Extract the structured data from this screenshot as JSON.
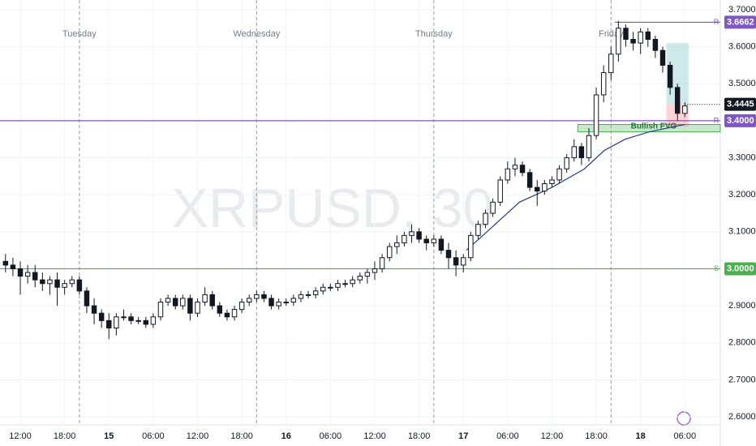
{
  "chart_data": {
    "type": "candlestick",
    "watermark": "XRPUSD, 30",
    "xlim": [
      9.25,
      106.8
    ],
    "xticks": [
      {
        "value": 12,
        "label": "12:00"
      },
      {
        "value": 18,
        "label": "18:00"
      },
      {
        "value": 24,
        "label": "15"
      },
      {
        "value": 30,
        "label": "06:00"
      },
      {
        "value": 36,
        "label": "12:00"
      },
      {
        "value": 42,
        "label": "18:00"
      },
      {
        "value": 48,
        "label": "16"
      },
      {
        "value": 54,
        "label": "06:00"
      },
      {
        "value": 60,
        "label": "12:00"
      },
      {
        "value": 66,
        "label": "18:00"
      },
      {
        "value": 72,
        "label": "17"
      },
      {
        "value": 78,
        "label": "06:00"
      },
      {
        "value": 84,
        "label": "12:00"
      },
      {
        "value": 90,
        "label": "18:00"
      },
      {
        "value": 96,
        "label": "18"
      },
      {
        "value": 102,
        "label": "06:00"
      }
    ],
    "day_markers": [
      {
        "value": 20,
        "label": "Tuesday"
      },
      {
        "value": 44,
        "label": "Wednesday"
      },
      {
        "value": 68,
        "label": "Thursday"
      },
      {
        "value": 92,
        "label": "Friday"
      }
    ],
    "ylim": [
      2.6,
      3.7
    ],
    "yticks": [
      {
        "value": 2.6,
        "label": "2.6000"
      },
      {
        "value": 2.7,
        "label": "2.7000"
      },
      {
        "value": 2.8,
        "label": "2.8000"
      },
      {
        "value": 2.9,
        "label": "2.9000"
      },
      {
        "value": 3.0,
        "label": "3.0000"
      },
      {
        "value": 3.1,
        "label": "3.1000"
      },
      {
        "value": 3.2,
        "label": "3.2000"
      },
      {
        "value": 3.3,
        "label": "3.3000"
      },
      {
        "value": 3.4,
        "label": "3.4000"
      },
      {
        "value": 3.5,
        "label": "3.5000"
      },
      {
        "value": 3.6,
        "label": "3.6000"
      },
      {
        "value": 3.7,
        "label": "3.7000"
      }
    ],
    "grid": true,
    "x": [
      10,
      11,
      12,
      13,
      14,
      15,
      16,
      17,
      18,
      19,
      20,
      21,
      22,
      23,
      24,
      25,
      26,
      27,
      28,
      29,
      30,
      31,
      32,
      33,
      34,
      35,
      36,
      37,
      38,
      39,
      40,
      41,
      42,
      43,
      44,
      45,
      46,
      47,
      48,
      49,
      50,
      51,
      52,
      53,
      54,
      55,
      56,
      57,
      58,
      59,
      60,
      61,
      62,
      63,
      64,
      65,
      66,
      67,
      68,
      69,
      70,
      71,
      72,
      73,
      74,
      75,
      76,
      77,
      78,
      79,
      80,
      81,
      82,
      83,
      84,
      85,
      86,
      87,
      88,
      89,
      90,
      91,
      92,
      93,
      94,
      95,
      96,
      97,
      98,
      99,
      100,
      101,
      102
    ],
    "open": [
      3.02,
      3.01,
      3.0,
      2.98,
      2.99,
      2.97,
      2.96,
      2.97,
      2.95,
      2.96,
      2.97,
      2.94,
      2.9,
      2.88,
      2.86,
      2.84,
      2.87,
      2.87,
      2.86,
      2.86,
      2.85,
      2.87,
      2.91,
      2.92,
      2.9,
      2.92,
      2.88,
      2.91,
      2.93,
      2.9,
      2.88,
      2.87,
      2.89,
      2.91,
      2.92,
      2.93,
      2.92,
      2.9,
      2.91,
      2.91,
      2.92,
      2.93,
      2.93,
      2.94,
      2.95,
      2.95,
      2.96,
      2.96,
      2.97,
      2.98,
      2.99,
      3.0,
      3.03,
      3.06,
      3.07,
      3.09,
      3.1,
      3.08,
      3.07,
      3.08,
      3.05,
      3.03,
      3.01,
      3.03,
      3.09,
      3.12,
      3.15,
      3.18,
      3.24,
      3.27,
      3.28,
      3.26,
      3.22,
      3.21,
      3.23,
      3.24,
      3.27,
      3.3,
      3.33,
      3.3,
      3.36,
      3.47,
      3.53,
      3.58,
      3.65,
      3.62,
      3.61,
      3.64,
      3.62,
      3.59,
      3.55,
      3.49,
      3.42
    ],
    "high": [
      3.04,
      3.03,
      3.02,
      3.01,
      3.01,
      2.99,
      2.98,
      2.99,
      2.97,
      2.98,
      2.98,
      2.95,
      2.92,
      2.89,
      2.88,
      2.88,
      2.89,
      2.88,
      2.87,
      2.87,
      2.88,
      2.92,
      2.93,
      2.93,
      2.93,
      2.93,
      2.92,
      2.95,
      2.94,
      2.91,
      2.89,
      2.9,
      2.92,
      2.93,
      2.94,
      2.94,
      2.93,
      2.92,
      2.92,
      2.93,
      2.94,
      2.94,
      2.95,
      2.96,
      2.96,
      2.97,
      2.97,
      2.98,
      2.99,
      3.0,
      3.02,
      3.04,
      3.07,
      3.09,
      3.1,
      3.12,
      3.11,
      3.09,
      3.09,
      3.09,
      3.07,
      3.05,
      3.04,
      3.1,
      3.13,
      3.16,
      3.19,
      3.25,
      3.29,
      3.3,
      3.29,
      3.27,
      3.24,
      3.24,
      3.25,
      3.28,
      3.31,
      3.35,
      3.34,
      3.38,
      3.49,
      3.55,
      3.6,
      3.67,
      3.66,
      3.64,
      3.65,
      3.65,
      3.63,
      3.6,
      3.56,
      3.5,
      3.45
    ],
    "low": [
      2.99,
      2.98,
      2.93,
      2.96,
      2.95,
      2.94,
      2.93,
      2.9,
      2.93,
      2.95,
      2.93,
      2.88,
      2.85,
      2.84,
      2.81,
      2.82,
      2.86,
      2.85,
      2.85,
      2.84,
      2.84,
      2.86,
      2.9,
      2.89,
      2.89,
      2.86,
      2.87,
      2.9,
      2.89,
      2.87,
      2.86,
      2.86,
      2.88,
      2.9,
      2.91,
      2.91,
      2.89,
      2.89,
      2.9,
      2.9,
      2.91,
      2.92,
      2.92,
      2.93,
      2.94,
      2.94,
      2.95,
      2.95,
      2.96,
      2.96,
      2.97,
      2.99,
      3.02,
      3.04,
      3.06,
      3.07,
      3.07,
      3.05,
      3.06,
      3.04,
      3.0,
      2.98,
      2.99,
      3.02,
      3.08,
      3.11,
      3.14,
      3.17,
      3.23,
      3.25,
      3.25,
      3.21,
      3.17,
      3.2,
      3.22,
      3.23,
      3.26,
      3.29,
      3.28,
      3.29,
      3.35,
      3.45,
      3.51,
      3.56,
      3.6,
      3.59,
      3.58,
      3.6,
      3.57,
      3.53,
      3.47,
      3.4,
      3.41
    ],
    "close": [
      3.01,
      3.0,
      2.98,
      2.99,
      2.97,
      2.96,
      2.97,
      2.95,
      2.96,
      2.97,
      2.94,
      2.9,
      2.88,
      2.86,
      2.84,
      2.87,
      2.87,
      2.86,
      2.86,
      2.85,
      2.87,
      2.91,
      2.92,
      2.9,
      2.92,
      2.88,
      2.91,
      2.93,
      2.9,
      2.88,
      2.87,
      2.89,
      2.91,
      2.92,
      2.93,
      2.92,
      2.9,
      2.91,
      2.91,
      2.92,
      2.93,
      2.93,
      2.94,
      2.95,
      2.95,
      2.96,
      2.96,
      2.97,
      2.98,
      2.99,
      3.0,
      3.03,
      3.06,
      3.07,
      3.09,
      3.1,
      3.08,
      3.07,
      3.08,
      3.05,
      3.03,
      3.01,
      3.03,
      3.09,
      3.12,
      3.15,
      3.18,
      3.24,
      3.27,
      3.28,
      3.26,
      3.22,
      3.21,
      3.23,
      3.24,
      3.27,
      3.3,
      3.33,
      3.3,
      3.36,
      3.47,
      3.53,
      3.58,
      3.65,
      3.62,
      3.61,
      3.64,
      3.62,
      3.59,
      3.55,
      3.49,
      3.42,
      3.44
    ],
    "moving_average": {
      "color": "#2a3a8c",
      "x": [
        72.4,
        75.2,
        79.6,
        84,
        88.4,
        91.1,
        93.9,
        97.2,
        102
      ],
      "values": [
        3.05,
        3.1,
        3.18,
        3.22,
        3.27,
        3.32,
        3.35,
        3.37,
        3.39
      ]
    },
    "levels": [
      {
        "tag": "R",
        "value": 3.6662,
        "value_label": "3.6662",
        "start": 92.5,
        "color": "#7e57c2"
      },
      {
        "tag": "R",
        "value": 3.4,
        "value_label": "3.4000",
        "start": 9.25,
        "color": "#7e57c2"
      },
      {
        "tag": "S",
        "value": 3.0,
        "value_label": "3.0000",
        "start": 9.25,
        "color": "#4caf50"
      }
    ],
    "last_price": 3.4445,
    "fvg": {
      "label": "Bullish FVG",
      "low": 3.37,
      "high": 3.39,
      "start": 87.5
    },
    "position": {
      "entry": 3.445,
      "target": 3.61,
      "stop": 3.385,
      "start": 99.5,
      "end": 102.5
    }
  }
}
